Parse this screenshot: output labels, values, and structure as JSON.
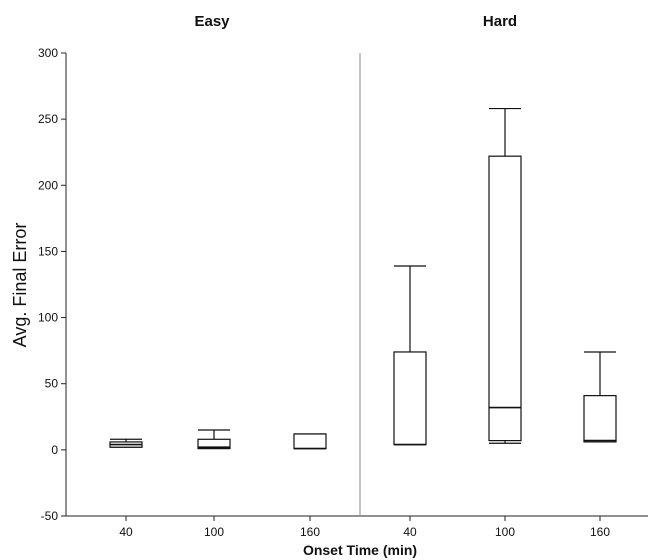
{
  "chart_data": {
    "type": "box",
    "xlabel": "Onset Time (min)",
    "ylabel": "Avg. Final Error",
    "ylim": [
      -50,
      300
    ],
    "yticks": [
      -50,
      0,
      50,
      100,
      150,
      200,
      250,
      300
    ],
    "yticklabels": [
      "-50",
      "0",
      "50",
      "100",
      "150",
      "200",
      "250",
      "300"
    ],
    "grid": false,
    "panels": [
      {
        "title": "Easy",
        "boxes": [
          {
            "label": "40",
            "whisker_low": 2,
            "q1": 2,
            "median": 4,
            "q3": 6,
            "whisker_high": 8
          },
          {
            "label": "100",
            "whisker_low": 1,
            "q1": 1,
            "median": 2,
            "q3": 8,
            "whisker_high": 15
          },
          {
            "label": "160",
            "whisker_low": 1,
            "q1": 1,
            "median": 1,
            "q3": 12,
            "whisker_high": 12
          }
        ]
      },
      {
        "title": "Hard",
        "boxes": [
          {
            "label": "40",
            "whisker_low": 4,
            "q1": 4,
            "median": 4,
            "q3": 74,
            "whisker_high": 139
          },
          {
            "label": "100",
            "whisker_low": 5,
            "q1": 7,
            "median": 32,
            "q3": 222,
            "whisker_high": 258
          },
          {
            "label": "160",
            "whisker_low": 6,
            "q1": 6,
            "median": 7,
            "q3": 41,
            "whisker_high": 74
          }
        ]
      }
    ]
  }
}
